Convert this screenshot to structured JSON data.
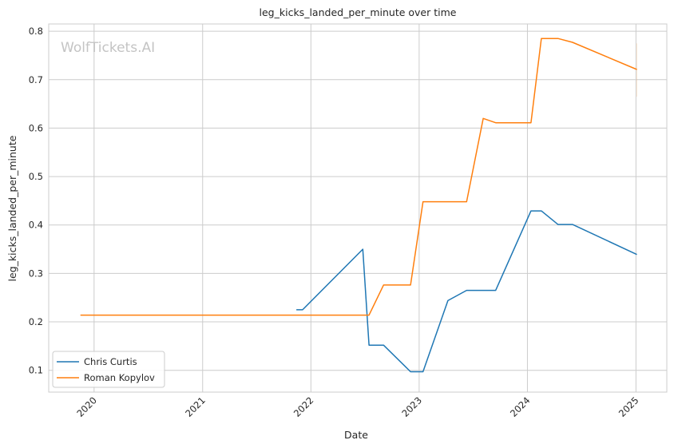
{
  "chart_data": {
    "type": "line",
    "title": "leg_kicks_landed_per_minute over time",
    "xlabel": "Date",
    "ylabel": "leg_kicks_landed_per_minute",
    "watermark": "WolfTickets.AI",
    "xlim": [
      "2019-08-01",
      "2025-04-15"
    ],
    "ylim": [
      0.055,
      0.815
    ],
    "x_ticks": [
      "2020-01-01",
      "2021-01-01",
      "2022-01-01",
      "2023-01-01",
      "2024-01-01",
      "2025-01-01"
    ],
    "x_tick_labels": [
      "2020",
      "2021",
      "2022",
      "2023",
      "2024",
      "2025"
    ],
    "y_ticks": [
      0.1,
      0.2,
      0.3,
      0.4,
      0.5,
      0.6,
      0.7,
      0.8
    ],
    "y_tick_labels": [
      "0.1",
      "0.2",
      "0.3",
      "0.4",
      "0.5",
      "0.6",
      "0.7",
      "0.8"
    ],
    "grid": true,
    "legend_position": "lower-left",
    "series": [
      {
        "name": "Chris Curtis",
        "color": "#1f77b4",
        "x": [
          "2021-11-13",
          "2021-12-04",
          "2022-06-25",
          "2022-07-16",
          "2022-09-03",
          "2022-12-03",
          "2023-01-14",
          "2023-04-08",
          "2023-06-10",
          "2023-09-16",
          "2024-01-13",
          "2024-02-17",
          "2024-04-13",
          "2024-06-01",
          "2025-01-04"
        ],
        "y": [
          0.225,
          0.225,
          0.35,
          0.152,
          0.152,
          0.097,
          0.097,
          0.244,
          0.265,
          0.265,
          0.429,
          0.429,
          0.401,
          0.401,
          0.339
        ]
      },
      {
        "name": "Roman Kopylov",
        "color": "#ff7f0e",
        "x": [
          "2019-11-16",
          "2022-07-16",
          "2022-09-03",
          "2022-12-03",
          "2023-01-14",
          "2023-06-10",
          "2023-08-05",
          "2023-09-16",
          "2024-01-13",
          "2024-02-17",
          "2024-04-13",
          "2024-06-01",
          "2025-01-04"
        ],
        "y": [
          0.214,
          0.214,
          0.276,
          0.276,
          0.448,
          0.448,
          0.62,
          0.611,
          0.611,
          0.785,
          0.785,
          0.777,
          0.721
        ]
      }
    ]
  }
}
